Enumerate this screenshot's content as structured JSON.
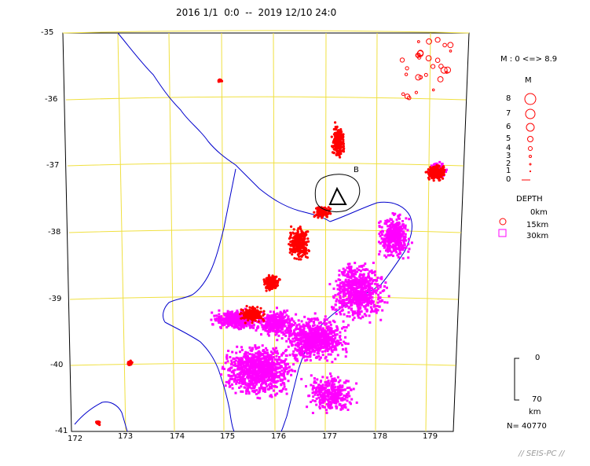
{
  "title": "2016 1/1  0:0  --  2019 12/10 24:0",
  "lat_labels": [
    "-35",
    "-36",
    "-37",
    "-38",
    "-39",
    "-40",
    "-41"
  ],
  "lon_labels": [
    "172",
    "173",
    "174",
    "175",
    "176",
    "177",
    "178",
    "179"
  ],
  "magnitude_range": "M : 0 <=> 8.9",
  "magnitude_header": "M",
  "magnitude_scale": [
    "8",
    "7",
    "6",
    "5",
    "4",
    "3",
    "2",
    "1",
    "0"
  ],
  "depth_header": "DEPTH",
  "depth_legend": [
    "0km",
    "15km",
    "30km"
  ],
  "depth_bar": {
    "top": "0",
    "bottom": "70",
    "unit": "km"
  },
  "event_count": "N= 40770",
  "volcano_marker": "B",
  "credit": "// SEIS-PC //",
  "colors": {
    "grid": "#f0e040",
    "coast": "#0000cc",
    "shallow": "#ff0000",
    "deep": "#ff00ff"
  }
}
